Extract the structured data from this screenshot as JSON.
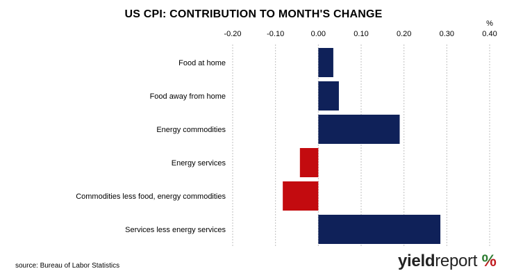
{
  "chart_data": {
    "type": "bar",
    "orientation": "horizontal",
    "title": "US CPI: CONTRIBUTION TO MONTH'S CHANGE",
    "unit_label": "%",
    "categories": [
      "Food at home",
      "Food away from home",
      "Energy commodities",
      "Energy services",
      "Commodities less food, energy commodities",
      "Services less energy services"
    ],
    "values": [
      0.035,
      0.048,
      0.19,
      -0.043,
      -0.083,
      0.285
    ],
    "xlim": [
      -0.2,
      0.4
    ],
    "xticks": [
      "-0.20",
      "-0.10",
      "0.00",
      "0.10",
      "0.20",
      "0.30",
      "0.40"
    ],
    "xtick_values": [
      -0.2,
      -0.1,
      0.0,
      0.1,
      0.2,
      0.3,
      0.4
    ],
    "xaxis_position": "top",
    "grid": "vertical-dashed",
    "positive_color": "#0f2159",
    "negative_color": "#c30b0f"
  },
  "source": "source: Bureau of Labor Statistics",
  "logo": {
    "text_bold": "yield",
    "text_light": "report",
    "symbol": "%"
  }
}
